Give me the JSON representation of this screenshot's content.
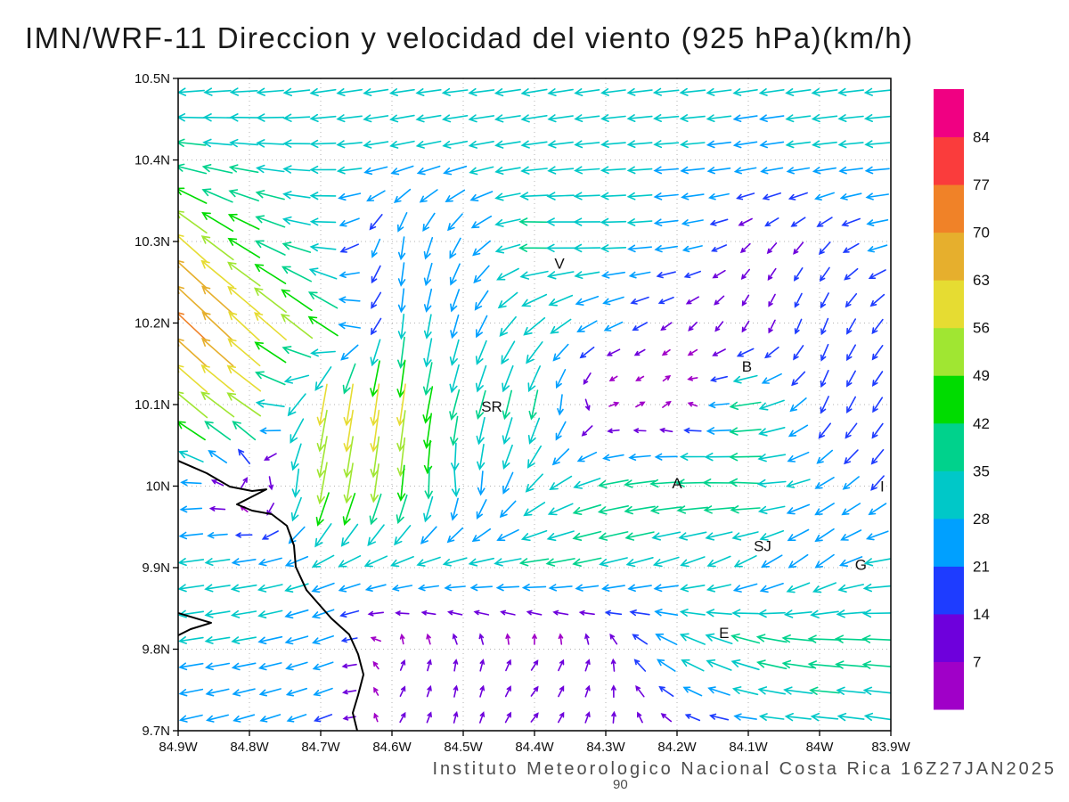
{
  "title": "IMN/WRF-11 Direccion y velocidad del viento (925 hPa)(km/h)",
  "caption": "Instituto Meteorologico Nacional Costa Rica  16Z27JAN2025",
  "scale_label": "90",
  "axes": {
    "lat_labels": [
      "10.5N",
      "10.4N",
      "10.3N",
      "10.2N",
      "10.1N",
      "10N",
      "9.9N",
      "9.8N",
      "9.7N"
    ],
    "lon_labels": [
      "84.9W",
      "84.8W",
      "84.7W",
      "84.6W",
      "84.5W",
      "84.4W",
      "84.3W",
      "84.2W",
      "84.1W",
      "84W",
      "83.9W"
    ],
    "lat_range": [
      9.7,
      10.5
    ],
    "lon_range": [
      -84.9,
      -83.9
    ]
  },
  "colorbar": {
    "tick_labels_top_to_bottom": [
      "84",
      "77",
      "70",
      "63",
      "56",
      "49",
      "42",
      "35",
      "28",
      "21",
      "14",
      "7"
    ],
    "colors_bottom_to_top": [
      "#a000c8",
      "#6e00dc",
      "#1e3cff",
      "#00a0ff",
      "#00c8c8",
      "#00d28c",
      "#00dc00",
      "#a0e632",
      "#e6dc32",
      "#e6af2d",
      "#f08228",
      "#fa3c3c",
      "#f00082"
    ]
  },
  "cities": [
    {
      "label": "V",
      "lon": -84.365,
      "lat": 10.273
    },
    {
      "label": "B",
      "lon": -84.102,
      "lat": 10.147
    },
    {
      "label": "SR",
      "lon": -84.46,
      "lat": 10.098
    },
    {
      "label": "A",
      "lon": -84.2,
      "lat": 10.004
    },
    {
      "label": "I",
      "lon": -83.912,
      "lat": 10.0
    },
    {
      "label": "SJ",
      "lon": -84.08,
      "lat": 9.927
    },
    {
      "label": "G",
      "lon": -83.942,
      "lat": 9.904
    },
    {
      "label": "E",
      "lon": -84.134,
      "lat": 9.82
    }
  ],
  "coastlines": [
    [
      [
        -84.9,
        10.031
      ],
      [
        -84.86,
        10.0158
      ],
      [
        -84.8275,
        9.9993
      ],
      [
        -84.7963,
        9.994
      ],
      [
        -84.7763,
        9.9961
      ],
      [
        -84.8175,
        9.9776
      ],
      [
        -84.7963,
        9.9699
      ],
      [
        -84.7688,
        9.9656
      ],
      [
        -84.7475,
        9.9514
      ],
      [
        -84.7375,
        9.9272
      ],
      [
        -84.735,
        9.901
      ],
      [
        -84.72,
        9.8726
      ],
      [
        -84.7025,
        9.8551
      ],
      [
        -84.685,
        9.8377
      ],
      [
        -84.66,
        9.818
      ],
      [
        -84.6475,
        9.7939
      ],
      [
        -84.64,
        9.7689
      ],
      [
        -84.6475,
        9.7437
      ],
      [
        -84.655,
        9.7219
      ],
      [
        -84.6488,
        9.7
      ]
    ],
    [
      [
        -84.9,
        9.8443
      ],
      [
        -84.8538,
        9.8323
      ],
      [
        -84.8825,
        9.8246
      ],
      [
        -84.9,
        9.8169
      ]
    ]
  ],
  "chart_data": {
    "type": "vector_field",
    "title": "IMN/WRF-11 Direccion y velocidad del viento (925 hPa)(km/h)",
    "units": "km/h",
    "level": "925 hPa",
    "legend_position": "right-colorbar",
    "speed_levels": [
      7,
      14,
      21,
      28,
      35,
      42,
      49,
      56,
      63,
      70,
      77,
      84
    ],
    "grid_lons": [
      -84.9,
      -84.8,
      -84.7,
      -84.6,
      -84.5,
      -84.4,
      -84.3,
      -84.2,
      -84.1,
      -84.0,
      -83.9
    ],
    "grid_lats": [
      10.5,
      10.4,
      10.3,
      10.2,
      10.1,
      10.0,
      9.9,
      9.8,
      9.7
    ],
    "uv_kmh": [
      [
        [
          -30,
          -4
        ],
        [
          -32,
          -3
        ],
        [
          -30,
          -5
        ],
        [
          -28,
          -4
        ],
        [
          -30,
          -3
        ],
        [
          -30,
          -5
        ],
        [
          -28,
          -4
        ],
        [
          -30,
          -3
        ],
        [
          -28,
          -4
        ],
        [
          -30,
          -4
        ],
        [
          -30,
          -3
        ]
      ],
      [
        [
          -38,
          6
        ],
        [
          -34,
          4
        ],
        [
          -30,
          0
        ],
        [
          -28,
          -6
        ],
        [
          -28,
          -6
        ],
        [
          -30,
          -4
        ],
        [
          -28,
          -2
        ],
        [
          -28,
          -2
        ],
        [
          -26,
          -4
        ],
        [
          -28,
          -3
        ],
        [
          -28,
          -2
        ]
      ],
      [
        [
          -42,
          40
        ],
        [
          -40,
          22
        ],
        [
          -30,
          2
        ],
        [
          -2,
          -26
        ],
        [
          -14,
          -22
        ],
        [
          -38,
          2
        ],
        [
          -30,
          0
        ],
        [
          -26,
          -4
        ],
        [
          -7,
          -7
        ],
        [
          -10,
          -12
        ],
        [
          -24,
          -4
        ]
      ],
      [
        [
          -57,
          54
        ],
        [
          -45,
          42
        ],
        [
          -40,
          30
        ],
        [
          -2,
          -28
        ],
        [
          -8,
          -26
        ],
        [
          -26,
          -20
        ],
        [
          -22,
          -10
        ],
        [
          -7,
          -6
        ],
        [
          -4,
          -9
        ],
        [
          -6,
          -16
        ],
        [
          -12,
          -14
        ]
      ],
      [
        [
          -42,
          36
        ],
        [
          -44,
          30
        ],
        [
          -10,
          -55
        ],
        [
          -8,
          -62
        ],
        [
          -10,
          -34
        ],
        [
          -8,
          -36
        ],
        [
          6,
          2
        ],
        [
          5,
          4
        ],
        [
          -40,
          -6
        ],
        [
          -8,
          -18
        ],
        [
          -10,
          -14
        ]
      ],
      [
        [
          -28,
          -2
        ],
        [
          9,
          7
        ],
        [
          -10,
          -55
        ],
        [
          -6,
          -48
        ],
        [
          4,
          -30
        ],
        [
          -20,
          -20
        ],
        [
          -38,
          -8
        ],
        [
          -42,
          -2
        ],
        [
          -40,
          2
        ],
        [
          -22,
          -12
        ],
        [
          -12,
          -16
        ]
      ],
      [
        [
          -30,
          -4
        ],
        [
          -30,
          -5
        ],
        [
          -26,
          -10
        ],
        [
          -28,
          -8
        ],
        [
          -30,
          -5
        ],
        [
          -36,
          -4
        ],
        [
          -34,
          -8
        ],
        [
          -28,
          -10
        ],
        [
          -24,
          -14
        ],
        [
          -20,
          -16
        ],
        [
          -34,
          -2
        ]
      ],
      [
        [
          -28,
          -4
        ],
        [
          -28,
          -5
        ],
        [
          -24,
          -8
        ],
        [
          3,
          7
        ],
        [
          1,
          9
        ],
        [
          5,
          8
        ],
        [
          2,
          9
        ],
        [
          -28,
          16
        ],
        [
          -36,
          12
        ],
        [
          -44,
          4
        ],
        [
          -36,
          2
        ]
      ],
      [
        [
          -26,
          -6
        ],
        [
          -22,
          -7
        ],
        [
          -18,
          -7
        ],
        [
          4,
          6
        ],
        [
          2,
          8
        ],
        [
          5,
          6
        ],
        [
          2,
          8
        ],
        [
          -6,
          4
        ],
        [
          -24,
          2
        ],
        [
          -30,
          3
        ],
        [
          -28,
          5
        ]
      ]
    ]
  }
}
